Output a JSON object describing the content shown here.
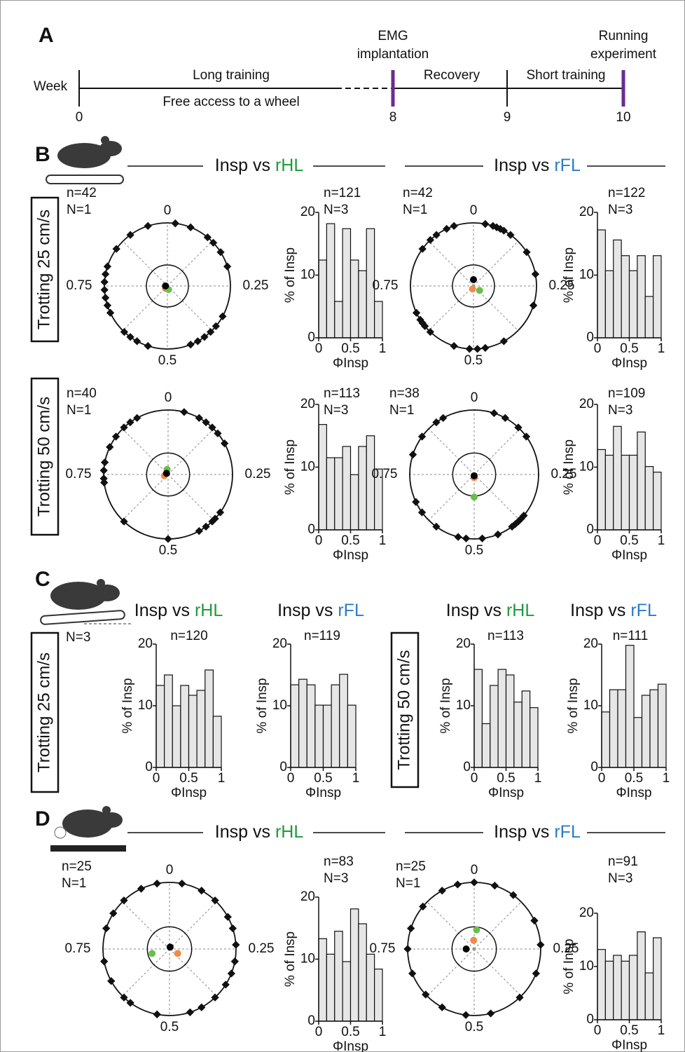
{
  "panel_labels": [
    "A",
    "B",
    "C",
    "D"
  ],
  "timeline": {
    "row_label": "Week",
    "highlight_color": "#6a2c91",
    "milestones": [
      {
        "week": 0
      },
      {
        "week": 8,
        "label": [
          "EMG",
          "implantation"
        ],
        "highlight": true
      },
      {
        "week": 9
      },
      {
        "week": 10,
        "label": [
          "Running",
          "experiment"
        ],
        "highlight": true
      }
    ],
    "segments": [
      {
        "above": "Long training",
        "below": "Free access to a wheel"
      },
      {
        "above": "Recovery"
      },
      {
        "above": "Short training"
      }
    ]
  },
  "limb_colors": {
    "rHL": "#1f9a3c",
    "rFL": "#2b7cc6"
  },
  "headers": [
    {
      "prefix": "Insp vs",
      "limb": "rHL"
    },
    {
      "prefix": "Insp vs",
      "limb": "rFL"
    },
    {
      "prefix": "Insp vs",
      "limb": "rHL"
    },
    {
      "prefix": "Insp vs",
      "limb": "rFL"
    },
    {
      "prefix": "Insp vs",
      "limb": "rHL"
    },
    {
      "prefix": "Insp vs",
      "limb": "rFL"
    },
    {
      "prefix": "Insp vs",
      "limb": "rHL"
    },
    {
      "prefix": "Insp vs",
      "limb": "rFL"
    }
  ],
  "conditions": [
    "Trotting 25 cm/s",
    "Trotting 50 cm/s",
    "Trotting 25 cm/s",
    "Trotting 50 cm/s"
  ],
  "panel_c_note": "N=3",
  "chart_data": [
    {
      "type": "polar",
      "annotations": [
        "n=42",
        "N=1"
      ],
      "ticks": [
        0,
        0.25,
        0.5,
        0.75
      ],
      "phases": [
        0.02,
        0.06,
        0.11,
        0.13,
        0.16,
        0.2,
        0.33,
        0.36,
        0.38,
        0.4,
        0.42,
        0.44,
        0.55,
        0.58,
        0.6,
        0.62,
        0.68,
        0.7,
        0.72,
        0.74,
        0.76,
        0.78,
        0.8,
        0.85,
        0.9,
        0.95
      ],
      "means": [
        {
          "color": "#f08a4b",
          "phase": 0.6,
          "r": 0.05
        },
        {
          "color": "#6abf4b",
          "phase": 0.45,
          "r": 0.06
        },
        {
          "color": "#000000",
          "phase": 0.75,
          "r": 0.03
        }
      ]
    },
    {
      "type": "histogram",
      "annotations": [
        "n=121",
        "N=3"
      ],
      "bins": [
        0,
        0.125,
        0.25,
        0.375,
        0.5,
        0.625,
        0.75,
        0.875,
        1
      ],
      "values": [
        12.4,
        18.2,
        5.8,
        17.4,
        12.4,
        10.7,
        17.4,
        5.8
      ],
      "xlim": [
        0,
        1
      ],
      "xticks": [
        0,
        0.5,
        1
      ],
      "ylim": [
        0,
        20
      ],
      "yticks": [
        0,
        10,
        20
      ],
      "ylabel": "% of Insp",
      "xlabel": "ΦInsp",
      "color": "#e6e6e6"
    },
    {
      "type": "polar",
      "annotations": [
        "n=42",
        "N=1"
      ],
      "ticks": [
        0,
        0.25,
        0.5,
        0.75
      ],
      "phases": [
        0.03,
        0.05,
        0.06,
        0.07,
        0.08,
        0.1,
        0.16,
        0.22,
        0.3,
        0.42,
        0.47,
        0.49,
        0.51,
        0.55,
        0.62,
        0.64,
        0.65,
        0.66,
        0.68,
        0.85,
        0.88,
        0.9,
        0.93,
        0.95
      ],
      "means": [
        {
          "color": "#f08a4b",
          "phase": 0.55,
          "r": 0.05
        },
        {
          "color": "#6abf4b",
          "phase": 0.35,
          "r": 0.12
        },
        {
          "color": "#000000",
          "phase": 0,
          "r": 0.1
        }
      ]
    },
    {
      "type": "histogram",
      "annotations": [
        "n=122",
        "N=3"
      ],
      "bins": [
        0,
        0.125,
        0.25,
        0.375,
        0.5,
        0.625,
        0.75,
        0.875,
        1
      ],
      "values": [
        17.2,
        10.7,
        15.6,
        13.1,
        10.7,
        13.1,
        6.6,
        13.1
      ],
      "xlim": [
        0,
        1
      ],
      "xticks": [
        0,
        0.5,
        1
      ],
      "ylim": [
        0,
        20
      ],
      "yticks": [
        0,
        10,
        20
      ],
      "ylabel": "% of Insp",
      "xlabel": "ΦInsp",
      "color": "#e6e6e6"
    },
    {
      "type": "polar",
      "annotations": [
        "n=40",
        "N=1"
      ],
      "ticks": [
        0,
        0.25,
        0.5,
        0.75
      ],
      "phases": [
        0.04,
        0.08,
        0.1,
        0.12,
        0.14,
        0.17,
        0.35,
        0.37,
        0.38,
        0.4,
        0.42,
        0.5,
        0.62,
        0.73,
        0.74,
        0.76,
        0.78,
        0.82,
        0.85,
        0.88,
        0.9,
        0.92
      ],
      "means": [
        {
          "color": "#f08a4b",
          "phase": 0.7,
          "r": 0.06
        },
        {
          "color": "#6abf4b",
          "phase": 0.97,
          "r": 0.08
        },
        {
          "color": "#000000",
          "phase": 0.85,
          "r": 0.03
        }
      ]
    },
    {
      "type": "histogram",
      "annotations": [
        "n=113",
        "N=3"
      ],
      "bins": [
        0,
        0.125,
        0.25,
        0.375,
        0.5,
        0.625,
        0.75,
        0.875,
        1
      ],
      "values": [
        16.8,
        11.5,
        11.5,
        13.3,
        8.8,
        13.3,
        15.0,
        9.7
      ],
      "xlim": [
        0,
        1
      ],
      "xticks": [
        0,
        0.5,
        1
      ],
      "ylim": [
        0,
        20
      ],
      "yticks": [
        0,
        10,
        20
      ],
      "ylabel": "% of Insp",
      "xlabel": "ΦInsp",
      "color": "#e6e6e6"
    },
    {
      "type": "polar",
      "annotations": [
        "n=38",
        "N=1"
      ],
      "ticks": [
        0,
        0.25,
        0.5,
        0.75
      ],
      "phases": [
        0.05,
        0.08,
        0.12,
        0.15,
        0.36,
        0.37,
        0.38,
        0.39,
        0.4,
        0.44,
        0.48,
        0.52,
        0.54,
        0.6,
        0.65,
        0.68,
        0.8,
        0.85,
        0.9,
        0.92
      ],
      "means": [
        {
          "color": "#f08a4b",
          "phase": 0.5,
          "r": 0.05
        },
        {
          "color": "#6abf4b",
          "phase": 0.5,
          "r": 0.35
        },
        {
          "color": "#000000",
          "phase": 0.5,
          "r": 0.02
        }
      ]
    },
    {
      "type": "histogram",
      "annotations": [
        "n=109",
        "N=3"
      ],
      "bins": [
        0,
        0.125,
        0.25,
        0.375,
        0.5,
        0.625,
        0.75,
        0.875,
        1
      ],
      "values": [
        12.8,
        11.9,
        16.5,
        11.9,
        11.9,
        15.6,
        10.1,
        9.2
      ],
      "xlim": [
        0,
        1
      ],
      "xticks": [
        0,
        0.5,
        1
      ],
      "ylim": [
        0,
        20
      ],
      "yticks": [
        0,
        10,
        20
      ],
      "ylabel": "% of Insp",
      "xlabel": "ΦInsp",
      "color": "#e6e6e6"
    },
    {
      "type": "histogram",
      "annotations": [
        "n=120"
      ],
      "bins": [
        0,
        0.125,
        0.25,
        0.375,
        0.5,
        0.625,
        0.75,
        0.875,
        1
      ],
      "values": [
        13.3,
        15.0,
        10.0,
        13.3,
        11.7,
        12.5,
        15.8,
        8.3
      ],
      "xlim": [
        0,
        1
      ],
      "xticks": [
        0,
        0.5,
        1
      ],
      "ylim": [
        0,
        20
      ],
      "yticks": [
        0,
        10,
        20
      ],
      "ylabel": "% of Insp",
      "xlabel": "ΦInsp",
      "color": "#e6e6e6"
    },
    {
      "type": "histogram",
      "annotations": [
        "n=119"
      ],
      "bins": [
        0,
        0.125,
        0.25,
        0.375,
        0.5,
        0.625,
        0.75,
        0.875,
        1
      ],
      "values": [
        13.4,
        14.3,
        13.4,
        10.1,
        10.1,
        13.4,
        15.1,
        10.1
      ],
      "xlim": [
        0,
        1
      ],
      "xticks": [
        0,
        0.5,
        1
      ],
      "ylim": [
        0,
        20
      ],
      "yticks": [
        0,
        10,
        20
      ],
      "ylabel": "% of Insp",
      "xlabel": "ΦInsp",
      "color": "#e6e6e6"
    },
    {
      "type": "histogram",
      "annotations": [
        "n=113"
      ],
      "bins": [
        0,
        0.125,
        0.25,
        0.375,
        0.5,
        0.625,
        0.75,
        0.875,
        1
      ],
      "values": [
        15.9,
        7.1,
        13.3,
        15.9,
        15.0,
        10.6,
        12.4,
        9.7
      ],
      "xlim": [
        0,
        1
      ],
      "xticks": [
        0,
        0.5,
        1
      ],
      "ylim": [
        0,
        20
      ],
      "yticks": [
        0,
        10,
        20
      ],
      "ylabel": "% of Insp",
      "xlabel": "ΦInsp",
      "color": "#e6e6e6"
    },
    {
      "type": "histogram",
      "annotations": [
        "n=111"
      ],
      "bins": [
        0,
        0.125,
        0.25,
        0.375,
        0.5,
        0.625,
        0.75,
        0.875,
        1
      ],
      "values": [
        9.0,
        12.6,
        12.6,
        19.8,
        8.1,
        11.7,
        12.6,
        13.5
      ],
      "xlim": [
        0,
        1
      ],
      "xticks": [
        0,
        0.5,
        1
      ],
      "ylim": [
        0,
        20
      ],
      "yticks": [
        0,
        10,
        20
      ],
      "ylabel": "% of Insp",
      "xlabel": "ΦInsp",
      "color": "#e6e6e6"
    },
    {
      "type": "polar",
      "annotations": [
        "n=25",
        "N=1"
      ],
      "ticks": [
        0,
        0.25,
        0.5,
        0.75
      ],
      "phases": [
        0.03,
        0.08,
        0.12,
        0.17,
        0.2,
        0.24,
        0.28,
        0.31,
        0.34,
        0.38,
        0.42,
        0.45,
        0.53,
        0.6,
        0.62,
        0.67,
        0.72,
        0.8,
        0.84,
        0.88,
        0.93,
        0.97
      ],
      "means": [
        {
          "color": "#f08a4b",
          "phase": 0.33,
          "r": 0.14
        },
        {
          "color": "#6abf4b",
          "phase": 0.71,
          "r": 0.27
        },
        {
          "color": "#000000",
          "phase": 0.05,
          "r": 0.03
        }
      ]
    },
    {
      "type": "histogram",
      "annotations": [
        "n=83",
        "N=3"
      ],
      "bins": [
        0,
        0.125,
        0.25,
        0.375,
        0.5,
        0.625,
        0.75,
        0.875,
        1
      ],
      "values": [
        13.3,
        10.8,
        14.5,
        9.6,
        18.1,
        15.7,
        10.8,
        8.4
      ],
      "xlim": [
        0,
        1
      ],
      "xticks": [
        0,
        0.5,
        1
      ],
      "ylim": [
        0,
        20
      ],
      "yticks": [
        0,
        10,
        20
      ],
      "ylabel": "% of Insp",
      "xlabel": "ΦInsp",
      "color": "#e6e6e6"
    },
    {
      "type": "polar",
      "annotations": [
        "n=25",
        "N=1"
      ],
      "ticks": [
        0,
        0.25,
        0.5,
        0.75
      ],
      "phases": [
        0.0,
        0.05,
        0.1,
        0.18,
        0.24,
        0.31,
        0.38,
        0.46,
        0.52,
        0.58,
        0.63,
        0.69,
        0.75,
        0.8,
        0.86,
        0.92,
        0.96
      ],
      "means": [
        {
          "color": "#f08a4b",
          "phase": 0.99,
          "r": 0.13
        },
        {
          "color": "#6abf4b",
          "phase": 0.02,
          "r": 0.29
        },
        {
          "color": "#000000",
          "phase": 0.75,
          "r": 0.12
        }
      ]
    },
    {
      "type": "histogram",
      "annotations": [
        "n=91",
        "N=3"
      ],
      "bins": [
        0,
        0.125,
        0.25,
        0.375,
        0.5,
        0.625,
        0.75,
        0.875,
        1
      ],
      "values": [
        13.2,
        11.0,
        12.1,
        11.0,
        12.1,
        16.5,
        8.8,
        15.4
      ],
      "xlim": [
        0,
        1
      ],
      "xticks": [
        0,
        0.5,
        1
      ],
      "ylim": [
        0,
        20
      ],
      "yticks": [
        0,
        10,
        20
      ],
      "ylabel": "% of Insp",
      "xlabel": "ΦInsp",
      "color": "#e6e6e6"
    }
  ]
}
